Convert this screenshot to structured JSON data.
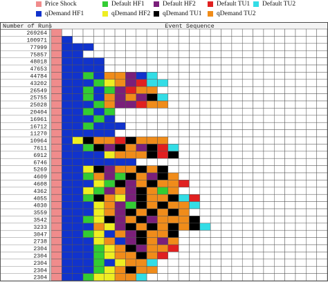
{
  "legend": [
    {
      "label": "Price Shock",
      "color": "#f08c8c"
    },
    {
      "label": "Default HF1",
      "color": "#33cc33"
    },
    {
      "label": "Default HF2",
      "color": "#7a1f7a"
    },
    {
      "label": "Default TU1",
      "color": "#e02020"
    },
    {
      "label": "Default TU2",
      "color": "#33dde6"
    },
    {
      "label": "qDemand HF1",
      "color": "#1133cc"
    },
    {
      "label": "qDemand HF2",
      "color": "#eeee22"
    },
    {
      "label": "qDemand TU1",
      "color": "#000000"
    },
    {
      "label": "qDemand TU2",
      "color": "#f08c1a"
    }
  ],
  "chart_data": {
    "type": "heatmap",
    "row_header": "Number of Runs",
    "column_header": "Event Sequence",
    "columns": 26,
    "palette": {
      "P": "#f08c8c",
      "B": "#1133cc",
      "G": "#33cc33",
      "V": "#7a1f7a",
      "R": "#e02020",
      "C": "#33dde6",
      "Y": "#eeee22",
      "K": "#000000",
      "O": "#f08c1a"
    },
    "rows": [
      {
        "runs": "269264",
        "seq": "P"
      },
      {
        "runs": "100971",
        "seq": "PB"
      },
      {
        "runs": "77999",
        "seq": "PBBB"
      },
      {
        "runs": "75857",
        "seq": "PBB"
      },
      {
        "runs": "48018",
        "seq": "PBBBB"
      },
      {
        "runs": "47653",
        "seq": "PBBBB"
      },
      {
        "runs": "44784",
        "seq": "PBBGBOOVBC"
      },
      {
        "runs": "43202",
        "seq": "PBBBGYOVRCC"
      },
      {
        "runs": "26549",
        "seq": "PBBGBGVROO"
      },
      {
        "runs": "25755",
        "seq": "PBBGBOVOVKC"
      },
      {
        "runs": "25028",
        "seq": "PBBBGOVVROO"
      },
      {
        "runs": "20404",
        "seq": "PBBGBG"
      },
      {
        "runs": "16961",
        "seq": "PBBBGB"
      },
      {
        "runs": "16712",
        "seq": "PBBGBBB"
      },
      {
        "runs": "11270",
        "seq": "PBBBBB"
      },
      {
        "runs": "10964",
        "seq": "PBYKOORKOOO"
      },
      {
        "runs": "7611",
        "seq": "PBBGKVKOVKRC"
      },
      {
        "runs": "6912",
        "seq": "PBBBBYOOOKRK"
      },
      {
        "runs": "6746",
        "seq": "PBBBBBBB"
      },
      {
        "runs": "5269",
        "seq": "PBBYKVOOKOK"
      },
      {
        "runs": "4609",
        "seq": "PBBGOVGKOVKO"
      },
      {
        "runs": "4608",
        "seq": "PBBBYGKVOKOOR"
      },
      {
        "runs": "4362",
        "seq": "PBBYGVOVKOGO"
      },
      {
        "runs": "4055",
        "seq": "PBBGKOYVKOOKCR"
      },
      {
        "runs": "4030",
        "seq": "PBBBYOVGKOKOOC"
      },
      {
        "runs": "3559",
        "seq": "PBBBYOVKOKOKO"
      },
      {
        "runs": "3542",
        "seq": "PBBGYKVOKVOOOK"
      },
      {
        "runs": "3233",
        "seq": "PBBBOYVKOKOKOKC"
      },
      {
        "runs": "3047",
        "seq": "PBBGYBOVKOOK"
      },
      {
        "runs": "2738",
        "seq": "PBBBYOBVKOVO"
      },
      {
        "runs": "2304",
        "seq": "PBBBGYOKVOOR"
      },
      {
        "runs": "2304",
        "seq": "PBBBGYOOKOR"
      },
      {
        "runs": "2304",
        "seq": "PBBBGBYOOC"
      },
      {
        "runs": "2304",
        "seq": "PBBBGYOKOO"
      },
      {
        "runs": "2304",
        "seq": "PBBGYYOOC"
      }
    ]
  }
}
